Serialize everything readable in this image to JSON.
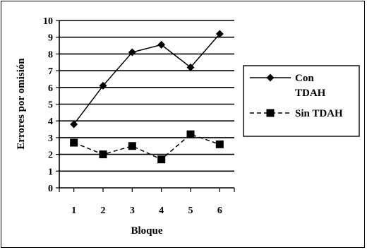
{
  "chart_data": {
    "type": "line",
    "title": "",
    "xlabel": "Bloque",
    "ylabel": "Errores por omisión",
    "x": [
      1,
      2,
      3,
      4,
      5,
      6
    ],
    "xticks": [
      "1",
      "2",
      "3",
      "4",
      "5",
      "6"
    ],
    "yticks": [
      "0",
      "1",
      "2",
      "3",
      "4",
      "5",
      "6",
      "7",
      "8",
      "9",
      "10"
    ],
    "ylim": [
      0,
      10
    ],
    "grid": "horizontal",
    "legend_position": "right",
    "series": [
      {
        "name": "Con TDAH",
        "name_lines": [
          "Con",
          "TDAH"
        ],
        "values": [
          3.8,
          6.1,
          8.1,
          8.55,
          7.2,
          9.2
        ],
        "marker": "diamond",
        "line_style": "solid",
        "color": "#000000"
      },
      {
        "name": "Sin TDAH",
        "name_lines": [
          "Sin TDAH"
        ],
        "values": [
          2.7,
          2.0,
          2.5,
          1.7,
          3.2,
          2.6
        ],
        "marker": "square",
        "line_style": "dashed",
        "color": "#000000"
      }
    ]
  }
}
